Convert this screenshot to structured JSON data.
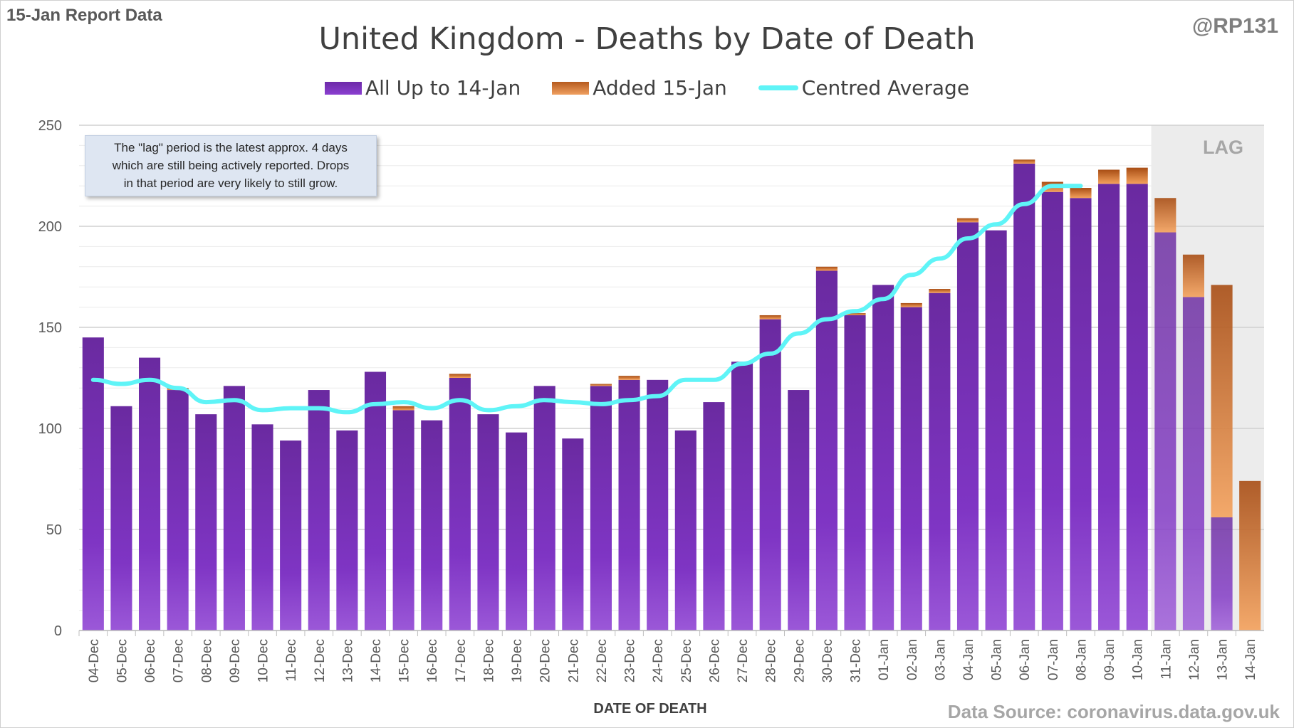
{
  "header": {
    "report_label": "15-Jan Report Data",
    "author": "@RP131"
  },
  "legend": {
    "series1": "All Up to 14-Jan",
    "series2": "Added 15-Jan",
    "series3": "Centred Average"
  },
  "annotation": {
    "line1": "The \"lag\" period is the latest approx. 4 days",
    "line2": "which are still being actively reported.  Drops",
    "line3": "in that period are very likely to still grow.",
    "lag_label": "LAG"
  },
  "footer": {
    "source": "Data Source: coronavirus.data.gov.uk"
  },
  "colors": {
    "base_bar": "#7030a0",
    "added_bar": "#c55a11",
    "average_line": "#5ff4f7",
    "lag_shade": "#ececec",
    "gridline": "#d9d9d9"
  },
  "chart_data": {
    "type": "bar",
    "stacked": true,
    "title": "United Kingdom - Deaths by Date of Death",
    "xlabel": "DATE OF DEATH",
    "ylabel": "",
    "ylim": [
      0,
      250
    ],
    "yticks": [
      0,
      50,
      100,
      150,
      200,
      250
    ],
    "grid": true,
    "legend_position": "top",
    "lag_categories": [
      "11-Jan",
      "12-Jan",
      "13-Jan",
      "14-Jan"
    ],
    "categories": [
      "04-Dec",
      "05-Dec",
      "06-Dec",
      "07-Dec",
      "08-Dec",
      "09-Dec",
      "10-Dec",
      "11-Dec",
      "12-Dec",
      "13-Dec",
      "14-Dec",
      "15-Dec",
      "16-Dec",
      "17-Dec",
      "18-Dec",
      "19-Dec",
      "20-Dec",
      "21-Dec",
      "22-Dec",
      "23-Dec",
      "24-Dec",
      "25-Dec",
      "26-Dec",
      "27-Dec",
      "28-Dec",
      "29-Dec",
      "30-Dec",
      "31-Dec",
      "01-Jan",
      "02-Jan",
      "03-Jan",
      "04-Jan",
      "05-Jan",
      "06-Jan",
      "07-Jan",
      "08-Jan",
      "09-Jan",
      "10-Jan",
      "11-Jan",
      "12-Jan",
      "13-Jan",
      "14-Jan"
    ],
    "series": [
      {
        "name": "All Up to 14-Jan",
        "values": [
          145,
          111,
          135,
          119,
          107,
          121,
          102,
          94,
          119,
          99,
          128,
          109,
          104,
          125,
          107,
          98,
          121,
          95,
          121,
          124,
          124,
          99,
          113,
          133,
          154,
          119,
          178,
          156,
          171,
          160,
          167,
          202,
          198,
          231,
          217,
          214,
          221,
          221,
          197,
          165,
          56,
          0
        ]
      },
      {
        "name": "Added 15-Jan",
        "values": [
          0,
          0,
          0,
          1,
          0,
          0,
          0,
          0,
          0,
          0,
          0,
          2,
          0,
          2,
          0,
          0,
          0,
          0,
          1,
          2,
          0,
          0,
          0,
          0,
          2,
          0,
          2,
          1,
          0,
          2,
          2,
          2,
          0,
          2,
          5,
          5,
          7,
          8,
          17,
          21,
          115,
          74
        ]
      },
      {
        "name": "Centred Average",
        "type": "line",
        "values": [
          124,
          122,
          124,
          120,
          113,
          114,
          109,
          110,
          110,
          108,
          112,
          113,
          110,
          114,
          109,
          111,
          114,
          113,
          112,
          114,
          116,
          124,
          124,
          132,
          137,
          147,
          154,
          158,
          164,
          176,
          184,
          194,
          201,
          211,
          220,
          220,
          null,
          null,
          null,
          null,
          null,
          null
        ]
      }
    ]
  }
}
